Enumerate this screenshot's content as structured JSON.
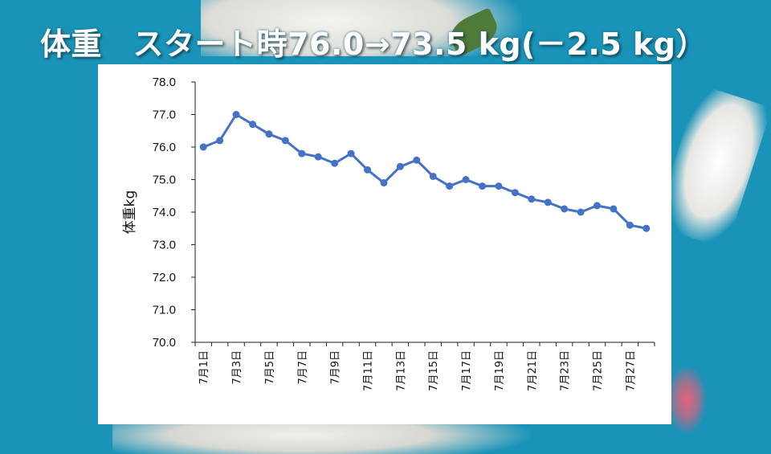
{
  "title": "体重　スタート時76.0→73.5 kg(－2.5 kg）",
  "chart_data": {
    "type": "line",
    "title": "",
    "ylabel": "体重kg",
    "xlabel": "",
    "ylim": [
      70.0,
      78.0
    ],
    "y_ticks": [
      "70.0",
      "71.0",
      "72.0",
      "73.0",
      "74.0",
      "75.0",
      "76.0",
      "77.0",
      "78.0"
    ],
    "x_ticks": [
      "7月1日",
      "7月3日",
      "7月5日",
      "7月7日",
      "7月9日",
      "7月11日",
      "7月13日",
      "7月15日",
      "7月17日",
      "7月19日",
      "7月21日",
      "7月23日",
      "7月25日",
      "7月27日"
    ],
    "grid": false,
    "legend": "none",
    "series": [
      {
        "values": [
          76.0,
          76.2,
          77.0,
          76.7,
          76.4,
          76.2,
          75.8,
          75.7,
          75.5,
          75.8,
          75.3,
          74.9,
          75.4,
          75.6,
          75.1,
          74.8,
          75.0,
          74.8,
          74.8,
          74.6,
          74.4,
          74.3,
          74.1,
          74.0,
          74.2,
          74.1,
          73.6,
          73.5
        ],
        "color": "#4472c4"
      }
    ]
  }
}
